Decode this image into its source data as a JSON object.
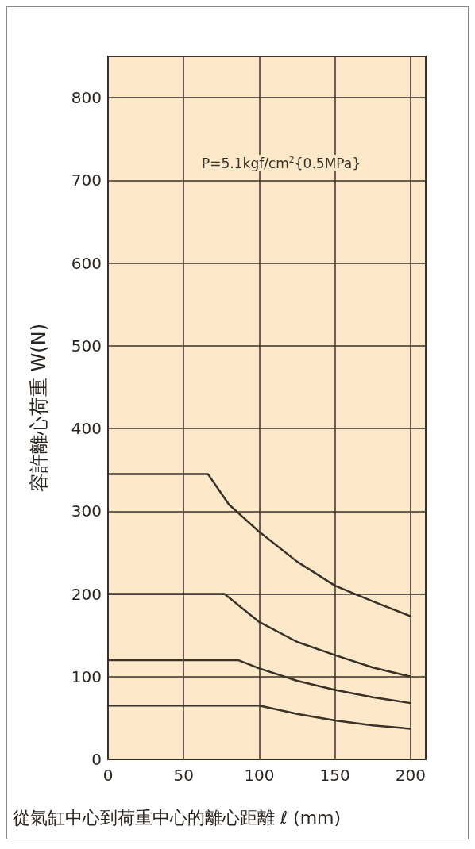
{
  "chart_data": {
    "type": "line",
    "xlabel": "從氣缸中心到荷重中心的離心距離 ℓ (mm)",
    "ylabel": "容許離心荷重 W(N)",
    "annotations": [
      "P=5.1kgf/cm$^{2}${0.5MPa}"
    ],
    "series": [
      {
        "color": "#3a3128",
        "x": [
          0,
          66,
          80,
          100,
          125,
          150,
          175,
          200
        ],
        "values": [
          345,
          345,
          308,
          275,
          239,
          210,
          191,
          173
        ]
      },
      {
        "color": "#3a3128",
        "x": [
          0,
          77,
          100,
          125,
          150,
          175,
          200
        ],
        "values": [
          200,
          200,
          166,
          142,
          126,
          111,
          100
        ]
      },
      {
        "color": "#3a3128",
        "x": [
          0,
          86,
          100,
          125,
          150,
          175,
          200
        ],
        "values": [
          120,
          120,
          110,
          95,
          84,
          75,
          68
        ]
      },
      {
        "color": "#3a3128",
        "x": [
          0,
          100,
          125,
          150,
          175,
          200
        ],
        "values": [
          65,
          65,
          55,
          47,
          41,
          37
        ]
      }
    ],
    "xlim": [
      0,
      210
    ],
    "xticks": [
      0,
      50,
      100,
      150,
      200
    ],
    "ylim": [
      0,
      850
    ],
    "yticks": [
      0,
      100,
      200,
      300,
      400,
      500,
      600,
      700,
      800
    ],
    "grid": true,
    "marker": "none",
    "line_style": "solid"
  }
}
